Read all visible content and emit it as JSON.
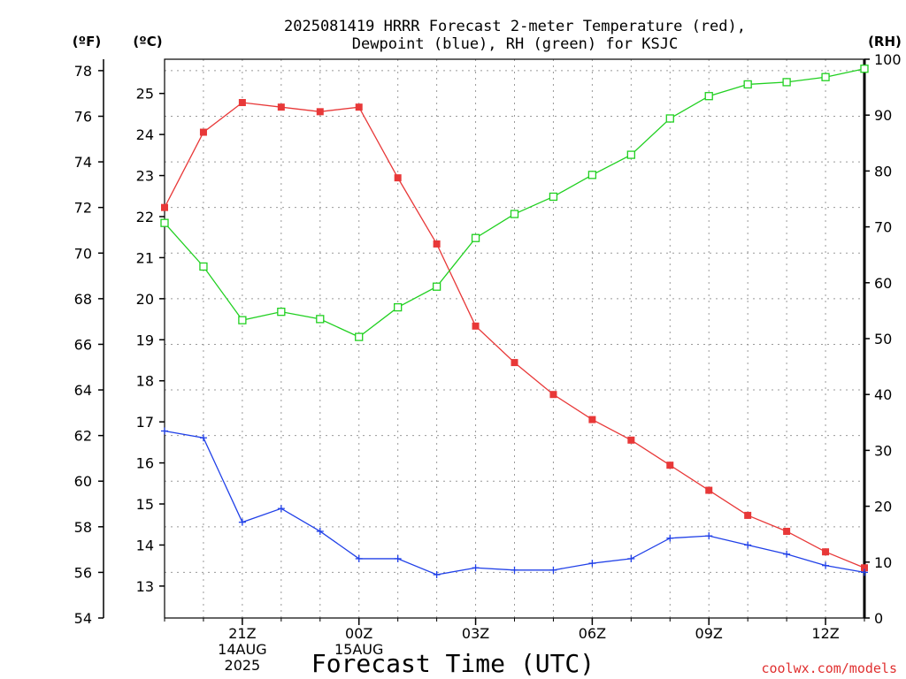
{
  "chart_data": {
    "type": "line",
    "title_lines": [
      "2025081419 HRRR Forecast 2-meter Temperature (red),",
      "Dewpoint (blue), RH (green) for KSJC"
    ],
    "xlabel": "Forecast Time (UTC)",
    "credit": "coolwx.com/models",
    "units": {
      "fahrenheit": "(ºF)",
      "celsius": "(ºC)",
      "rh": "(RH)"
    },
    "x_range": [
      19,
      37
    ],
    "x_ticks": [
      {
        "x": 21,
        "lines": [
          "21Z",
          "14AUG",
          "2025"
        ]
      },
      {
        "x": 24,
        "lines": [
          "00Z",
          "15AUG"
        ]
      },
      {
        "x": 27,
        "lines": [
          "03Z"
        ]
      },
      {
        "x": 30,
        "lines": [
          "06Z"
        ]
      },
      {
        "x": 33,
        "lines": [
          "09Z"
        ]
      },
      {
        "x": 36,
        "lines": [
          "12Z"
        ]
      }
    ],
    "fahrenheit_axis": {
      "range": [
        54,
        78.5
      ],
      "ticks": [
        "54",
        "56",
        "58",
        "60",
        "62",
        "64",
        "66",
        "68",
        "70",
        "72",
        "74",
        "76",
        "78"
      ]
    },
    "celsius_axis": {
      "ticks": [
        "13",
        "14",
        "15",
        "16",
        "17",
        "18",
        "19",
        "20",
        "21",
        "22",
        "23",
        "24",
        "25"
      ]
    },
    "rh_axis": {
      "range": [
        0,
        100
      ],
      "ticks": [
        "0",
        "10",
        "20",
        "30",
        "40",
        "50",
        "60",
        "70",
        "80",
        "90",
        "100"
      ]
    },
    "grid": true,
    "series": [
      {
        "name": "Temperature",
        "color": "#e83838",
        "marker": "filled-square",
        "axis": "F",
        "x": [
          19,
          20,
          21,
          22,
          23,
          24,
          25,
          26,
          27,
          28,
          29,
          30,
          31,
          32,
          33,
          34,
          35,
          36,
          37
        ],
        "values": [
          72.0,
          75.3,
          76.6,
          76.4,
          76.2,
          76.4,
          73.3,
          70.4,
          66.8,
          65.2,
          63.8,
          62.7,
          61.8,
          60.7,
          59.6,
          58.5,
          57.8,
          56.9,
          56.2
        ]
      },
      {
        "name": "Dewpoint",
        "color": "#2040e8",
        "marker": "plus",
        "axis": "F",
        "x": [
          19,
          20,
          21,
          22,
          23,
          24,
          25,
          26,
          27,
          28,
          29,
          30,
          31,
          32,
          33,
          34,
          35,
          36,
          37
        ],
        "values": [
          62.2,
          61.9,
          58.2,
          58.8,
          57.8,
          56.6,
          56.6,
          55.9,
          56.2,
          56.1,
          56.1,
          56.4,
          56.6,
          57.5,
          57.6,
          57.2,
          56.8,
          56.3,
          56.0
        ]
      },
      {
        "name": "RH",
        "color": "#20d020",
        "marker": "open-square",
        "axis": "RH",
        "x": [
          19,
          20,
          21,
          22,
          23,
          24,
          25,
          26,
          27,
          28,
          29,
          30,
          31,
          32,
          33,
          34,
          35,
          36,
          37
        ],
        "values": [
          70.7,
          62.9,
          53.3,
          54.8,
          53.5,
          50.3,
          55.6,
          59.3,
          68.0,
          72.3,
          75.4,
          79.3,
          82.9,
          89.4,
          93.4,
          95.5,
          95.9,
          96.8,
          98.3
        ]
      }
    ]
  }
}
